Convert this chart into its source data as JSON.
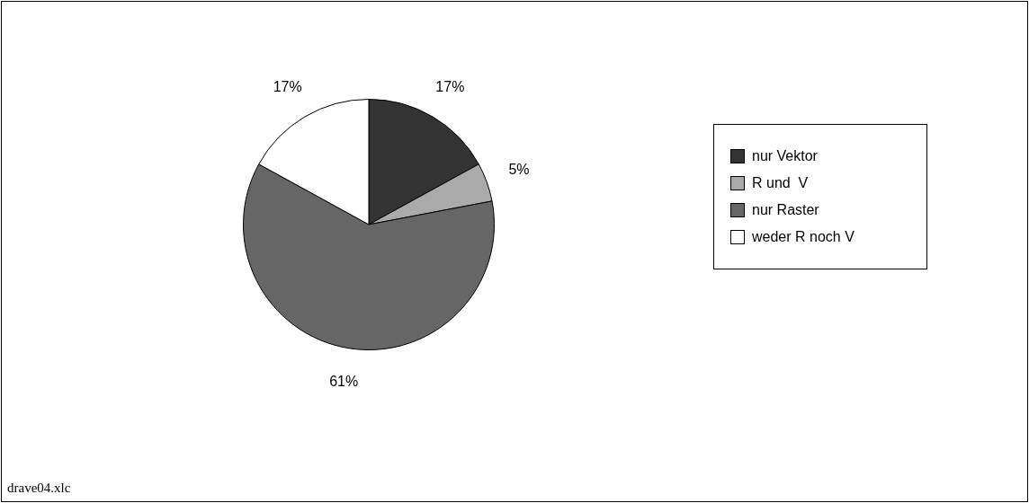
{
  "chart_data": {
    "type": "pie",
    "categories": [
      "nur Vektor",
      "R und  V",
      "nur Raster",
      "weder R noch V"
    ],
    "values": [
      17,
      5,
      61,
      17
    ],
    "value_labels": [
      "17%",
      "5%",
      "61%",
      "17%"
    ],
    "colors": [
      "#333333",
      "#aaaaaa",
      "#666666",
      "#ffffff"
    ],
    "legend": "right",
    "annotations": [
      "drave04.xlc"
    ]
  }
}
